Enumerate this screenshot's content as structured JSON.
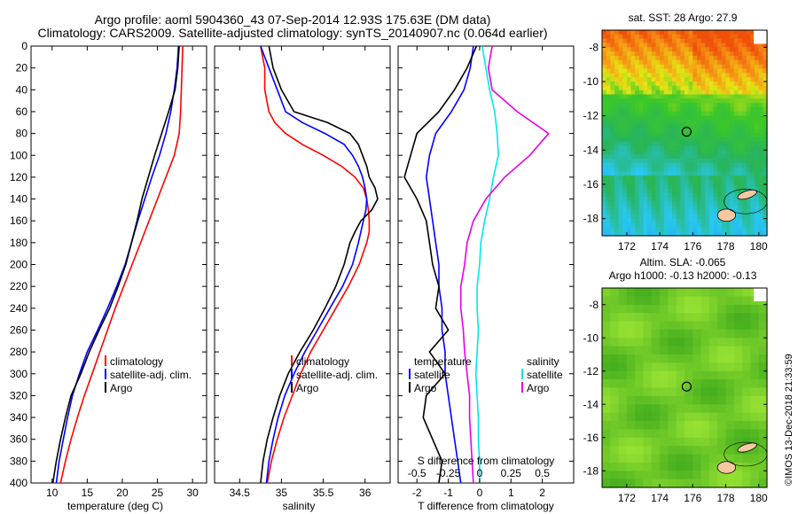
{
  "title": {
    "line1": "Argo profile: aoml 5904360_43 07-Sep-2014 12.93S 175.63E (DM data)",
    "line2": "Climatology: CARS2009. Satellite-adjusted climatology: synTS_20140907.nc (0.064d earlier)"
  },
  "footer_stamp": "©IMOS 13-Dec-2018 21:33:59",
  "colors": {
    "climatology": "#ff0000",
    "satellite": "#0000ff",
    "argo": "#000000",
    "sat_diff": "#00e5ee",
    "sal_diff": "#e600e6",
    "land": "#f5c8a0"
  },
  "chart_data": [
    {
      "id": "temperature",
      "type": "line",
      "xlabel": "temperature (deg C)",
      "ylabel": "",
      "xlim": [
        7,
        32
      ],
      "ylim": [
        400,
        0
      ],
      "xticks": [
        "10",
        "15",
        "20",
        "25",
        "30"
      ],
      "yticks": [
        "0",
        "20",
        "40",
        "60",
        "80",
        "100",
        "120",
        "140",
        "160",
        "180",
        "200",
        "220",
        "240",
        "260",
        "280",
        "300",
        "320",
        "340",
        "360",
        "380",
        "400"
      ],
      "legend": [
        "climatology",
        "satellite-adj. clim.",
        "Argo"
      ],
      "series": [
        {
          "name": "climatology",
          "color": "#ff0000",
          "depth": [
            0,
            20,
            40,
            60,
            80,
            100,
            120,
            140,
            160,
            180,
            200,
            220,
            240,
            260,
            280,
            300,
            320,
            340,
            360,
            380,
            400
          ],
          "values": [
            28.6,
            28.5,
            28.4,
            28.3,
            28.1,
            27.4,
            26.2,
            25.0,
            23.8,
            22.6,
            21.4,
            20.2,
            19.0,
            17.9,
            16.8,
            15.7,
            14.6,
            13.6,
            12.7,
            11.9,
            11.2
          ]
        },
        {
          "name": "satellite-adj. clim.",
          "color": "#0000ff",
          "depth": [
            0,
            20,
            40,
            60,
            80,
            100,
            120,
            140,
            160,
            180,
            200,
            220,
            240,
            260,
            280,
            300,
            320,
            340,
            360,
            380,
            400
          ],
          "values": [
            28.0,
            27.8,
            27.4,
            26.9,
            26.2,
            25.3,
            24.2,
            23.2,
            22.2,
            21.3,
            20.4,
            19.2,
            17.9,
            16.5,
            15.0,
            13.9,
            12.9,
            12.2,
            11.6,
            11.0,
            10.6
          ]
        },
        {
          "name": "Argo",
          "color": "#000000",
          "depth": [
            0,
            20,
            40,
            60,
            80,
            100,
            120,
            140,
            160,
            180,
            200,
            220,
            240,
            260,
            280,
            300,
            320,
            340,
            360,
            380,
            400
          ],
          "values": [
            28.1,
            27.9,
            27.5,
            26.6,
            25.6,
            24.6,
            23.7,
            22.8,
            22.1,
            21.3,
            20.5,
            19.4,
            18.2,
            16.7,
            15.3,
            14.1,
            12.7,
            11.9,
            11.2,
            10.6,
            10.1
          ]
        }
      ]
    },
    {
      "id": "salinity",
      "type": "line",
      "xlabel": "salinity",
      "ylabel": "",
      "xlim": [
        34.2,
        36.3
      ],
      "ylim": [
        400,
        0
      ],
      "xticks": [
        "34.5",
        "35",
        "35.5",
        "36"
      ],
      "legend": [
        "climatology",
        "satellite-adj. clim.",
        "Argo"
      ],
      "series": [
        {
          "name": "climatology",
          "color": "#ff0000",
          "depth": [
            0,
            20,
            40,
            60,
            70,
            80,
            90,
            100,
            110,
            120,
            130,
            140,
            150,
            160,
            170,
            180,
            200,
            220,
            240,
            260,
            280,
            300,
            320,
            340,
            360,
            380,
            400
          ],
          "values": [
            34.75,
            34.8,
            34.8,
            34.85,
            34.92,
            35.05,
            35.25,
            35.5,
            35.72,
            35.88,
            35.98,
            36.02,
            36.04,
            36.05,
            36.05,
            36.02,
            35.93,
            35.8,
            35.65,
            35.5,
            35.35,
            35.23,
            35.13,
            35.03,
            34.95,
            34.88,
            34.83
          ]
        },
        {
          "name": "satellite-adj. clim.",
          "color": "#0000ff",
          "depth": [
            0,
            20,
            40,
            60,
            70,
            80,
            90,
            100,
            110,
            120,
            130,
            140,
            150,
            160,
            170,
            180,
            200,
            220,
            240,
            260,
            280,
            300,
            320,
            340,
            360,
            380,
            400
          ],
          "values": [
            34.75,
            34.85,
            34.95,
            35.05,
            35.25,
            35.52,
            35.75,
            35.85,
            35.92,
            35.97,
            36.0,
            36.02,
            36.01,
            35.98,
            35.95,
            35.92,
            35.85,
            35.73,
            35.58,
            35.43,
            35.28,
            35.15,
            35.04,
            34.96,
            34.9,
            34.85,
            34.82
          ]
        },
        {
          "name": "Argo",
          "color": "#000000",
          "depth": [
            0,
            20,
            40,
            60,
            70,
            80,
            90,
            100,
            110,
            120,
            130,
            140,
            150,
            160,
            170,
            180,
            200,
            220,
            240,
            260,
            280,
            300,
            320,
            340,
            360,
            380,
            400
          ],
          "values": [
            34.85,
            34.9,
            35.0,
            35.15,
            35.55,
            35.82,
            35.92,
            35.97,
            36.02,
            36.05,
            36.12,
            36.15,
            36.08,
            35.95,
            35.88,
            35.82,
            35.75,
            35.65,
            35.52,
            35.38,
            35.22,
            35.08,
            34.98,
            34.9,
            34.83,
            34.78,
            34.75
          ]
        }
      ]
    },
    {
      "id": "differences",
      "type": "line",
      "xlabel": "T difference from climatology",
      "xlabel_top": "S difference from climatology",
      "ylabel": "",
      "xlim": [
        -2.6,
        3.0
      ],
      "ylim": [
        400,
        0
      ],
      "xticks": [
        "-2",
        "-1",
        "0",
        "1",
        "2"
      ],
      "xticks_top": [
        "-0.5",
        "-0.25",
        "0",
        "0.25",
        "0.5"
      ],
      "legend_temperature_title": "temperature",
      "legend_salinity_title": "salinity",
      "legend": [
        "satellite",
        "Argo",
        "satellite",
        "Argo"
      ],
      "series": [
        {
          "name": "temperature satellite",
          "color": "#0000ff",
          "depth": [
            0,
            20,
            40,
            60,
            80,
            100,
            120,
            140,
            160,
            180,
            200,
            220,
            240,
            260,
            280,
            300,
            320,
            340,
            360,
            380,
            400
          ],
          "values": [
            -0.2,
            -0.3,
            -0.5,
            -0.9,
            -1.4,
            -1.6,
            -1.7,
            -1.6,
            -1.5,
            -1.4,
            -1.3,
            -1.3,
            -1.2,
            -1.2,
            -1.1,
            -1.1,
            -1.0,
            -0.9,
            -0.8,
            -0.7,
            -0.6
          ]
        },
        {
          "name": "temperature Argo",
          "color": "#000000",
          "depth": [
            0,
            20,
            40,
            60,
            80,
            100,
            120,
            140,
            160,
            180,
            200,
            220,
            240,
            260,
            280,
            300,
            320,
            340,
            360,
            380,
            400
          ],
          "values": [
            -0.1,
            -0.4,
            -0.8,
            -1.3,
            -2.0,
            -2.2,
            -2.4,
            -2.0,
            -1.7,
            -1.6,
            -1.5,
            -1.3,
            -1.4,
            -1.0,
            -1.6,
            -1.1,
            -1.7,
            -1.8,
            -1.5,
            -1.2,
            -1.3
          ]
        },
        {
          "name": "salinity satellite",
          "color": "#00e5ee",
          "depth": [
            0,
            20,
            40,
            60,
            80,
            100,
            120,
            140,
            160,
            180,
            200,
            220,
            240,
            260,
            280,
            300,
            320,
            340,
            360,
            380,
            400
          ],
          "values": [
            0.02,
            0.05,
            0.08,
            0.12,
            0.14,
            0.15,
            0.11,
            0.08,
            0.04,
            0.01,
            0.0,
            -0.02,
            -0.02,
            -0.01,
            -0.02,
            -0.03,
            -0.02,
            -0.01,
            -0.01,
            0.0,
            0.0
          ]
        },
        {
          "name": "salinity Argo",
          "color": "#e600e6",
          "depth": [
            0,
            20,
            40,
            60,
            80,
            100,
            120,
            140,
            160,
            180,
            200,
            220,
            240,
            260,
            280,
            300,
            320,
            340,
            360,
            380,
            400
          ],
          "values": [
            0.1,
            0.07,
            0.1,
            0.3,
            0.55,
            0.4,
            0.2,
            0.05,
            -0.05,
            -0.1,
            -0.12,
            -0.15,
            -0.15,
            -0.13,
            -0.12,
            -0.1,
            -0.08,
            -0.08,
            -0.07,
            -0.06,
            -0.05
          ]
        }
      ]
    },
    {
      "id": "sst_map",
      "type": "heatmap",
      "title": "sat. SST: 28 Argo: 27.9",
      "xlim": [
        170.5,
        180.5
      ],
      "ylim": [
        -19,
        -7
      ],
      "xticks": [
        "172",
        "174",
        "176",
        "178",
        "180"
      ],
      "yticks": [
        "-8",
        "-10",
        "-12",
        "-14",
        "-16",
        "-18"
      ],
      "marker": {
        "lon": 175.63,
        "lat": -12.93
      }
    },
    {
      "id": "sla_map",
      "type": "heatmap",
      "title_line1": "Altim. SLA: -0.065",
      "title_line2": "Argo h1000: -0.13 h2000: -0.13",
      "xlim": [
        170.5,
        180.5
      ],
      "ylim": [
        -19,
        -7
      ],
      "xticks": [
        "172",
        "174",
        "176",
        "178",
        "180"
      ],
      "yticks": [
        "-8",
        "-10",
        "-12",
        "-14",
        "-16",
        "-18"
      ],
      "marker": {
        "lon": 175.63,
        "lat": -12.93
      }
    }
  ]
}
